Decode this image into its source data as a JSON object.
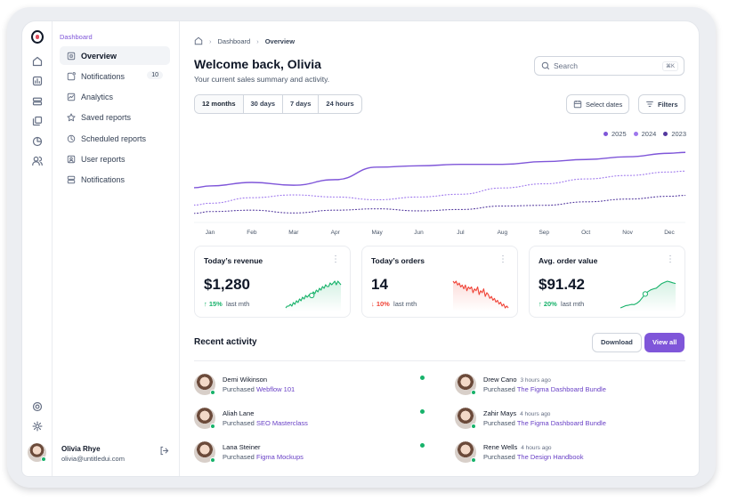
{
  "sidebar": {
    "section_label": "Dashboard",
    "items": [
      {
        "label": "Overview",
        "icon": "overview-icon",
        "active": true
      },
      {
        "label": "Notifications",
        "icon": "notification-icon",
        "badge": "10"
      },
      {
        "label": "Analytics",
        "icon": "analytics-icon"
      },
      {
        "label": "Saved reports",
        "icon": "star-icon"
      },
      {
        "label": "Scheduled reports",
        "icon": "clock-icon"
      },
      {
        "label": "User reports",
        "icon": "user-square-icon"
      },
      {
        "label": "Notifications",
        "icon": "layers-icon"
      }
    ],
    "user": {
      "name": "Olivia Rhye",
      "email": "olivia@untitledui.com"
    }
  },
  "rail_icons": [
    "home-icon",
    "bar-chart-icon",
    "layers-icon",
    "copy-icon",
    "pie-chart-icon",
    "users-icon",
    "support-icon",
    "settings-icon"
  ],
  "breadcrumb": {
    "items": [
      "Dashboard",
      "Overview"
    ]
  },
  "header": {
    "title": "Welcome back, Olivia",
    "subtitle": "Your current sales summary and activity.",
    "search_placeholder": "Search",
    "search_shortcut": "⌘K"
  },
  "filters": {
    "ranges": [
      "12 months",
      "30 days",
      "7 days",
      "24 hours"
    ],
    "active_range": "12 months",
    "select_dates_label": "Select dates",
    "filters_label": "Filters"
  },
  "chart_data": {
    "type": "line",
    "x": [
      "Jan",
      "Feb",
      "Mar",
      "Apr",
      "May",
      "Jun",
      "Jul",
      "Aug",
      "Sep",
      "Oct",
      "Nov",
      "Dec"
    ],
    "series": [
      {
        "name": "2025",
        "color": "#7f56d9",
        "style": "solid",
        "values": [
          45,
          50,
          46,
          54,
          72,
          74,
          76,
          76,
          80,
          83,
          87,
          92
        ]
      },
      {
        "name": "2024",
        "color": "#9e77ed",
        "style": "dotted",
        "values": [
          20,
          28,
          32,
          29,
          25,
          29,
          33,
          42,
          48,
          55,
          60,
          65
        ]
      },
      {
        "name": "2023",
        "color": "#53389e",
        "style": "dotted",
        "values": [
          8,
          10,
          6,
          10,
          12,
          9,
          11,
          16,
          17,
          22,
          26,
          30
        ]
      }
    ],
    "ylim": [
      0,
      100
    ],
    "legend_position": "top-right",
    "grid": false
  },
  "metrics": [
    {
      "title": "Today’s revenue",
      "value": "$1,280",
      "change": "15%",
      "direction": "up",
      "period": "last mth",
      "color": "#17b26a",
      "spark": [
        2,
        3,
        3,
        4,
        3,
        5,
        4,
        6,
        5,
        7,
        6,
        8,
        7,
        9,
        8,
        9,
        10,
        9,
        11,
        10,
        12,
        11,
        13,
        12,
        14,
        13,
        15,
        14,
        14,
        16,
        15,
        16,
        17,
        15,
        17,
        16,
        15
      ]
    },
    {
      "title": "Today’s orders",
      "value": "14",
      "change": "10%",
      "direction": "down",
      "period": "last mth",
      "color": "#f04438",
      "spark": [
        16,
        15,
        16,
        14,
        15,
        13,
        14,
        12,
        14,
        11,
        13,
        12,
        13,
        10,
        12,
        11,
        13,
        9,
        11,
        10,
        12,
        8,
        10,
        9,
        7,
        8,
        6,
        7,
        5,
        6,
        4,
        5,
        3,
        4,
        2,
        3,
        2
      ]
    },
    {
      "title": "Avg. order value",
      "value": "$91.42",
      "change": "20%",
      "direction": "up",
      "period": "last mth",
      "color": "#17b26a",
      "spark": [
        2,
        2.5,
        3,
        3.2,
        3.5,
        3.4,
        4,
        5,
        6.5,
        8,
        9,
        9.8,
        10.2,
        10.5,
        11.5,
        12.5,
        13,
        13.5,
        13.2,
        12.8,
        12.5
      ]
    }
  ],
  "recent_activity": {
    "title": "Recent activity",
    "download_label": "Download",
    "view_all_label": "View all",
    "left": [
      {
        "name": "Demi Wikinson",
        "time": "",
        "action": "Purchased",
        "item": "Webflow 101",
        "unread": true
      },
      {
        "name": "Aliah Lane",
        "time": "",
        "action": "Purchased",
        "item": "SEO Masterclass",
        "unread": true
      },
      {
        "name": "Lana Steiner",
        "time": "",
        "action": "Purchased",
        "item": "Figma Mockups",
        "unread": true
      }
    ],
    "right": [
      {
        "name": "Drew Cano",
        "time": "3 hours ago",
        "action": "Purchased",
        "item": "The Figma Dashboard Bundle"
      },
      {
        "name": "Zahir Mays",
        "time": "4 hours ago",
        "action": "Purchased",
        "item": "The Figma Dashboard Bundle"
      },
      {
        "name": "Rene Wells",
        "time": "4 hours ago",
        "action": "Purchased",
        "item": "The Design Handbook"
      }
    ]
  }
}
